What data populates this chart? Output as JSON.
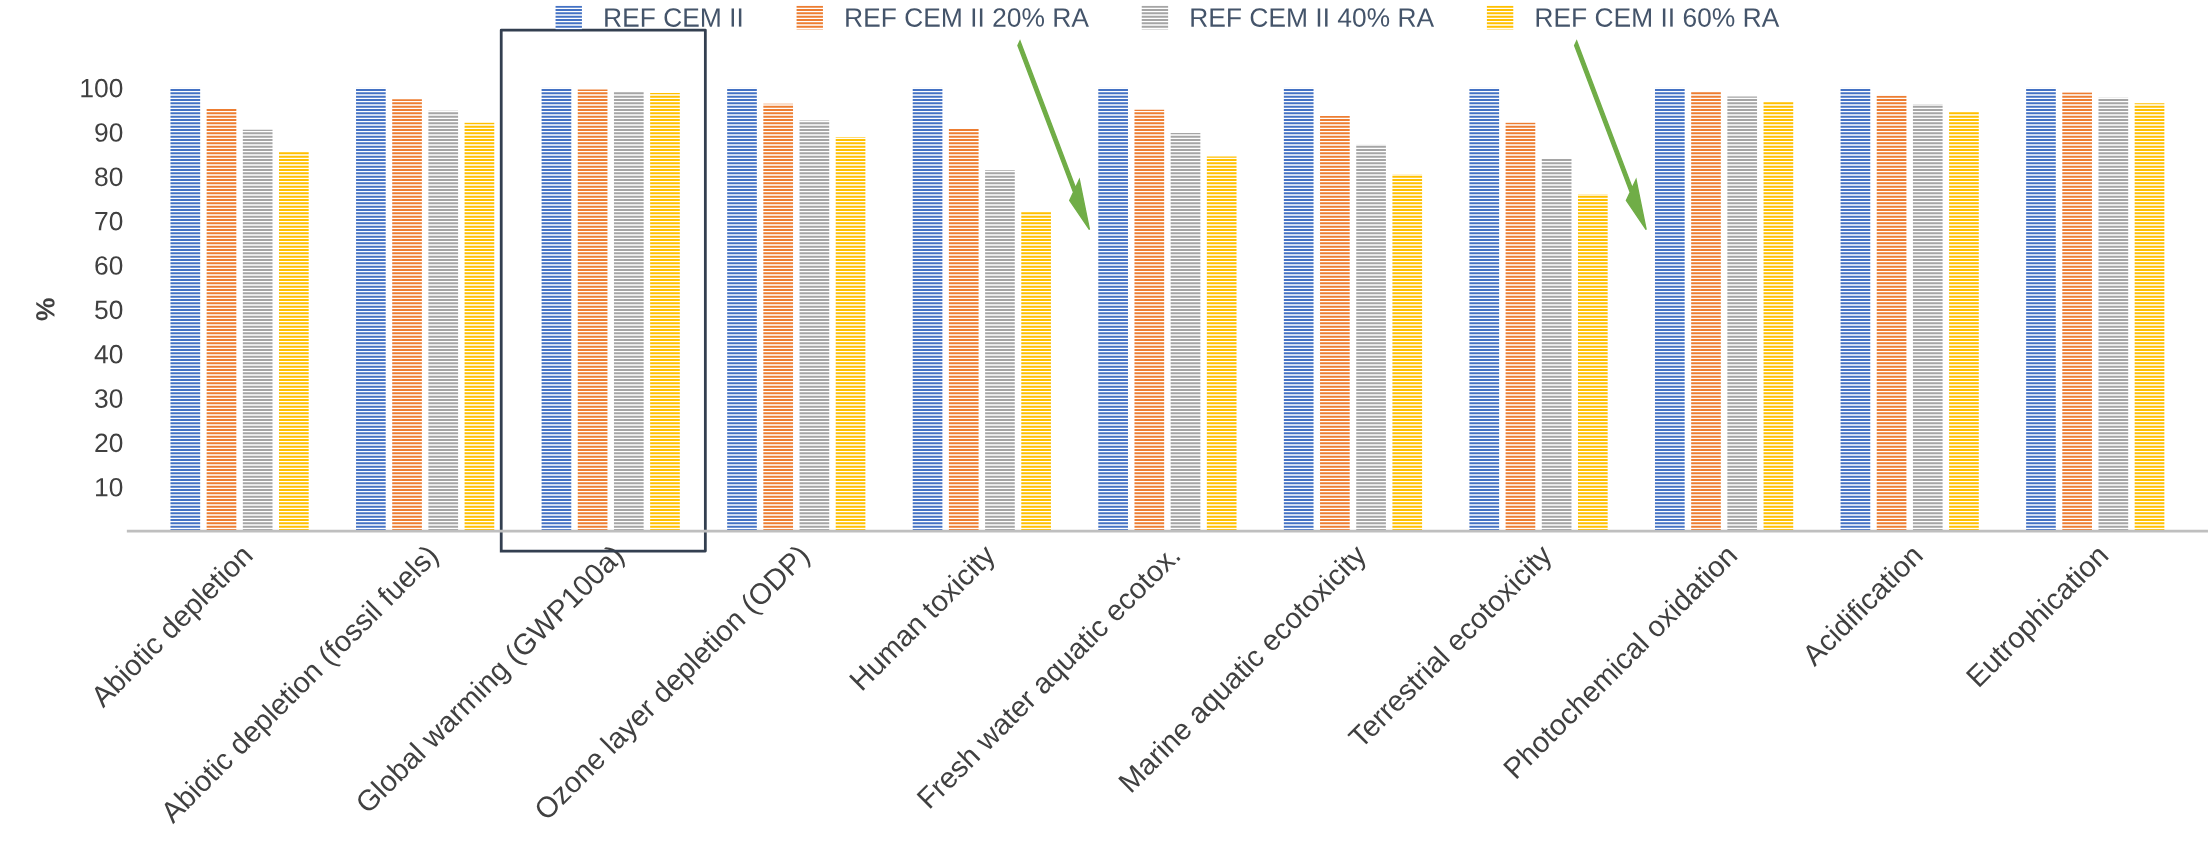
{
  "chart_data": {
    "type": "bar",
    "ylabel": "%",
    "categories": [
      "Abiotic depletion",
      "Abiotic depletion (fossil fuels)",
      "Global warming (GWP100a)",
      "Ozone layer depletion (ODP)",
      "Human toxicity",
      "Fresh water aquatic ecotox.",
      "Marine aquatic ecotoxicity",
      "Terrestrial ecotoxicity",
      "Photochemical oxidation",
      "Acidification",
      "Eutrophication"
    ],
    "series": [
      {
        "name": "REF CEM II",
        "color": "#4472c4",
        "values": [
          100,
          100,
          100,
          100,
          100,
          100,
          100,
          100,
          100,
          100,
          100
        ]
      },
      {
        "name": "REF CEM II 20% RA",
        "color": "#ed7d31",
        "values": [
          95.3,
          97.4,
          99.6,
          96.4,
          90.8,
          95.0,
          93.6,
          92.1,
          99.0,
          98.2,
          98.9
        ]
      },
      {
        "name": "REF CEM II 40% RA",
        "color": "#a5a5a5",
        "values": [
          90.5,
          94.8,
          99.2,
          92.6,
          81.4,
          89.8,
          87.1,
          84.1,
          98.0,
          96.3,
          97.7
        ]
      },
      {
        "name": "REF CEM II 60% RA",
        "color": "#ffc000",
        "values": [
          85.7,
          92.1,
          98.8,
          88.8,
          72.0,
          84.5,
          80.5,
          76.0,
          97.0,
          94.5,
          96.5
        ]
      }
    ],
    "ylim": [
      0,
      100
    ],
    "yticks": [
      10,
      20,
      30,
      40,
      50,
      60,
      70,
      80,
      90,
      100
    ],
    "grid": false,
    "legend": "top"
  }
}
